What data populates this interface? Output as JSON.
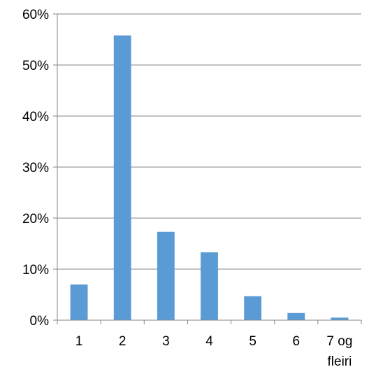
{
  "chart_data": {
    "type": "bar",
    "title": "",
    "xlabel": "",
    "ylabel": "",
    "categories": [
      [
        "1"
      ],
      [
        "2"
      ],
      [
        "3"
      ],
      [
        "4"
      ],
      [
        "5"
      ],
      [
        "6"
      ],
      [
        "7 og",
        "fleiri"
      ]
    ],
    "values": [
      7.0,
      55.8,
      17.3,
      13.3,
      4.7,
      1.4,
      0.5
    ],
    "ylim": [
      0,
      60
    ],
    "yticks": [
      0,
      10,
      20,
      30,
      40,
      50,
      60
    ],
    "ytick_labels": [
      "0%",
      "10%",
      "20%",
      "30%",
      "40%",
      "50%",
      "60%"
    ],
    "y_unit": "%",
    "grid": "horizontal",
    "legend": "none",
    "bar_color": "#5b9bd5",
    "grid_color": "#868686"
  }
}
